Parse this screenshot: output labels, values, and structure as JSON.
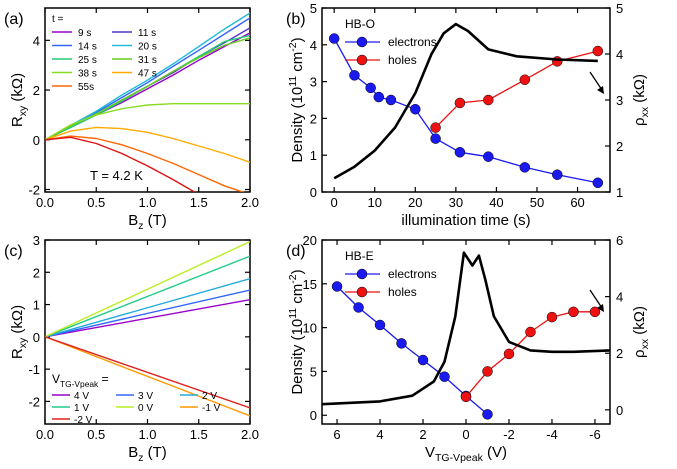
{
  "chart_data": [
    {
      "panel": "(a)",
      "type": "line",
      "xlabel": "B_z (T)",
      "ylabel": "R_xy (kΩ)",
      "xlim": [
        0,
        2
      ],
      "ylim": [
        -2.1,
        5.3
      ],
      "xticks": [
        "0.0",
        "0.5",
        "1.0",
        "1.5",
        "2.0"
      ],
      "yticks": [
        "-2",
        "0",
        "2",
        "4"
      ],
      "legend_title": "t =",
      "legend_placement": "top-left",
      "annotation": "T = 4.2 K",
      "series": [
        {
          "name": "9 s",
          "color": "#9900cc",
          "x": [
            0,
            0.25,
            0.5,
            0.75,
            1.0,
            1.25,
            1.5,
            1.75,
            2.0
          ],
          "y": [
            0,
            0.5,
            1.0,
            1.5,
            2.05,
            2.6,
            3.2,
            3.75,
            4.3
          ]
        },
        {
          "name": "11 s",
          "color": "#5533cc",
          "x": [
            0,
            0.25,
            0.5,
            0.75,
            1.0,
            1.25,
            1.5,
            1.75,
            2.0
          ],
          "y": [
            0,
            0.52,
            1.05,
            1.6,
            2.15,
            2.7,
            3.35,
            3.9,
            4.5
          ]
        },
        {
          "name": "14 s",
          "color": "#3366ff",
          "x": [
            0,
            0.25,
            0.5,
            0.75,
            1.0,
            1.25,
            1.5,
            1.75,
            2.0
          ],
          "y": [
            0,
            0.55,
            1.1,
            1.7,
            2.3,
            2.95,
            3.6,
            4.25,
            4.9
          ]
        },
        {
          "name": "20 s",
          "color": "#22bbdd",
          "x": [
            0,
            0.25,
            0.5,
            0.75,
            1.0,
            1.25,
            1.5,
            1.75,
            2.0
          ],
          "y": [
            0,
            0.58,
            1.15,
            1.8,
            2.4,
            3.05,
            3.75,
            4.45,
            5.1
          ]
        },
        {
          "name": "25 s",
          "color": "#22cc77",
          "x": [
            0,
            0.25,
            0.5,
            0.75,
            1.0,
            1.25,
            1.5,
            1.75,
            2.0
          ],
          "y": [
            0,
            0.5,
            1.0,
            1.55,
            2.15,
            2.75,
            3.35,
            3.95,
            4.2
          ]
        },
        {
          "name": "31 s",
          "color": "#66cc22",
          "x": [
            0,
            0.25,
            0.5,
            0.75,
            1.0,
            1.25,
            1.5,
            1.75,
            2.0
          ],
          "y": [
            0,
            0.55,
            1.05,
            1.6,
            2.15,
            2.75,
            3.3,
            3.8,
            4.1
          ]
        },
        {
          "name": "38 s",
          "color": "#88dd22",
          "x": [
            0,
            0.25,
            0.5,
            0.75,
            1.0,
            1.25,
            1.5,
            1.75,
            2.0
          ],
          "y": [
            0,
            0.6,
            1.0,
            1.25,
            1.4,
            1.45,
            1.45,
            1.45,
            1.45
          ]
        },
        {
          "name": "47 s",
          "color": "#ffaa00",
          "x": [
            0,
            0.25,
            0.5,
            0.75,
            1.0,
            1.25,
            1.5,
            1.75,
            2.0
          ],
          "y": [
            0,
            0.35,
            0.5,
            0.45,
            0.3,
            0.05,
            -0.25,
            -0.55,
            -0.9
          ]
        },
        {
          "name": "55s",
          "color": "#ff6600",
          "x": [
            0,
            0.25,
            0.5,
            0.75,
            1.0,
            1.25,
            1.5,
            1.75,
            2.0
          ],
          "y": [
            0,
            0.15,
            0.05,
            -0.2,
            -0.55,
            -0.95,
            -1.4,
            -1.85,
            -2.2
          ]
        },
        {
          "name": "",
          "color": "#dd1111",
          "x": [
            0,
            0.25,
            0.5,
            0.75,
            1.0,
            1.25,
            1.5
          ],
          "y": [
            0,
            0.1,
            -0.15,
            -0.55,
            -1.05,
            -1.6,
            -2.2
          ]
        }
      ]
    },
    {
      "panel": "(b)",
      "type": "line",
      "xlabel": "illumination time (s)",
      "ylabel": "Density (10^11 cm^-2)",
      "y2label": "ρ_xx (kΩ)",
      "xlim": [
        -3,
        68
      ],
      "ylim": [
        0,
        5
      ],
      "y2lim": [
        1,
        5
      ],
      "xticks": [
        "0",
        "10",
        "20",
        "30",
        "40",
        "50",
        "60"
      ],
      "yticks": [
        "0",
        "1",
        "2",
        "3",
        "4",
        "5"
      ],
      "y2ticks": [
        "1",
        "2",
        "3",
        "4",
        "5"
      ],
      "legend_placement": "top-left",
      "annotation": "HB-O",
      "series": [
        {
          "name": "electrons",
          "color": "#1a1aee",
          "x": [
            0,
            5,
            9,
            11,
            14,
            20,
            25,
            31,
            38,
            47,
            55,
            65
          ],
          "y": [
            4.17,
            3.17,
            2.83,
            2.58,
            2.5,
            2.25,
            1.45,
            1.08,
            0.96,
            0.67,
            0.47,
            0.25
          ]
        },
        {
          "name": "holes",
          "color": "#ee1111",
          "x": [
            25,
            31,
            38,
            47,
            55,
            65
          ],
          "y": [
            1.75,
            2.42,
            2.5,
            3.05,
            3.55,
            3.83
          ]
        },
        {
          "name": "",
          "color": "#000000",
          "axis": "right",
          "x": [
            0,
            5,
            10,
            15,
            20,
            24,
            27,
            30,
            33,
            38,
            45,
            55,
            65
          ],
          "y": [
            1.3,
            1.55,
            1.9,
            2.4,
            3.15,
            4.0,
            4.45,
            4.65,
            4.5,
            4.1,
            3.95,
            3.88,
            3.85
          ]
        }
      ]
    },
    {
      "panel": "(c)",
      "type": "line",
      "xlabel": "B_z (T)",
      "ylabel": "R_xy (kΩ)",
      "xlim": [
        0,
        2
      ],
      "ylim": [
        -2.7,
        3
      ],
      "xticks": [
        "0.0",
        "0.5",
        "1.0",
        "1.5",
        "2.0"
      ],
      "yticks": [
        "-2",
        "-1",
        "0",
        "1",
        "2",
        "3"
      ],
      "legend_title": "V_TG-V_peak =",
      "legend_placement": "bottom-left",
      "series": [
        {
          "name": "4 V",
          "color": "#9900cc",
          "x": [
            0,
            2
          ],
          "y": [
            0,
            1.15
          ]
        },
        {
          "name": "3 V",
          "color": "#3366ff",
          "x": [
            0,
            2
          ],
          "y": [
            0,
            1.45
          ]
        },
        {
          "name": "2 V",
          "color": "#22aadd",
          "x": [
            0,
            2
          ],
          "y": [
            0,
            1.8
          ]
        },
        {
          "name": "1 V",
          "color": "#22cc88",
          "x": [
            0,
            2
          ],
          "y": [
            0,
            2.5
          ]
        },
        {
          "name": "0 V",
          "color": "#bbee22",
          "x": [
            0,
            2
          ],
          "y": [
            0,
            2.95
          ]
        },
        {
          "name": "-1 V",
          "color": "#ff9900",
          "x": [
            0,
            2
          ],
          "y": [
            0,
            -2.45
          ]
        },
        {
          "name": "-2 V",
          "color": "#dd2222",
          "x": [
            0,
            2
          ],
          "y": [
            0,
            -2.2
          ]
        }
      ]
    },
    {
      "panel": "(d)",
      "type": "line",
      "xlabel": "V_TG-V_peak (V)",
      "ylabel": "Density (10^11 cm^-2)",
      "y2label": "ρ_xx (kΩ)",
      "xlim": [
        6.7,
        -6.7
      ],
      "ylim": [
        -1,
        20
      ],
      "y2lim": [
        -0.5,
        6
      ],
      "xticks": [
        "6",
        "4",
        "2",
        "0",
        "-2",
        "-4",
        "-6"
      ],
      "yticks": [
        "0",
        "5",
        "10",
        "15",
        "20"
      ],
      "y2ticks": [
        "0",
        "2",
        "4",
        "6"
      ],
      "legend_placement": "top-left",
      "annotation": "HB-E",
      "series": [
        {
          "name": "electrons",
          "color": "#1a1aee",
          "x": [
            6,
            5,
            4,
            3,
            2,
            1,
            0,
            -1
          ],
          "y": [
            14.7,
            12.3,
            10.3,
            8.2,
            6.3,
            4.4,
            2.2,
            0.1
          ]
        },
        {
          "name": "holes",
          "color": "#ee1111",
          "x": [
            0,
            -1,
            -2,
            -3,
            -4,
            -5,
            -6
          ],
          "y": [
            2.1,
            5.0,
            7.0,
            9.5,
            11.2,
            11.8,
            11.8
          ]
        },
        {
          "name": "",
          "color": "#000000",
          "axis": "right",
          "x": [
            6.7,
            4,
            2.5,
            1.5,
            1.0,
            0.5,
            0.1,
            -0.3,
            -0.6,
            -0.9,
            -1.3,
            -2,
            -3,
            -4,
            -5,
            -6.7
          ],
          "y": [
            0.2,
            0.3,
            0.5,
            1.0,
            1.7,
            3.3,
            5.55,
            5.1,
            5.45,
            4.6,
            3.3,
            2.4,
            2.1,
            2.05,
            2.05,
            2.1
          ]
        }
      ]
    }
  ]
}
